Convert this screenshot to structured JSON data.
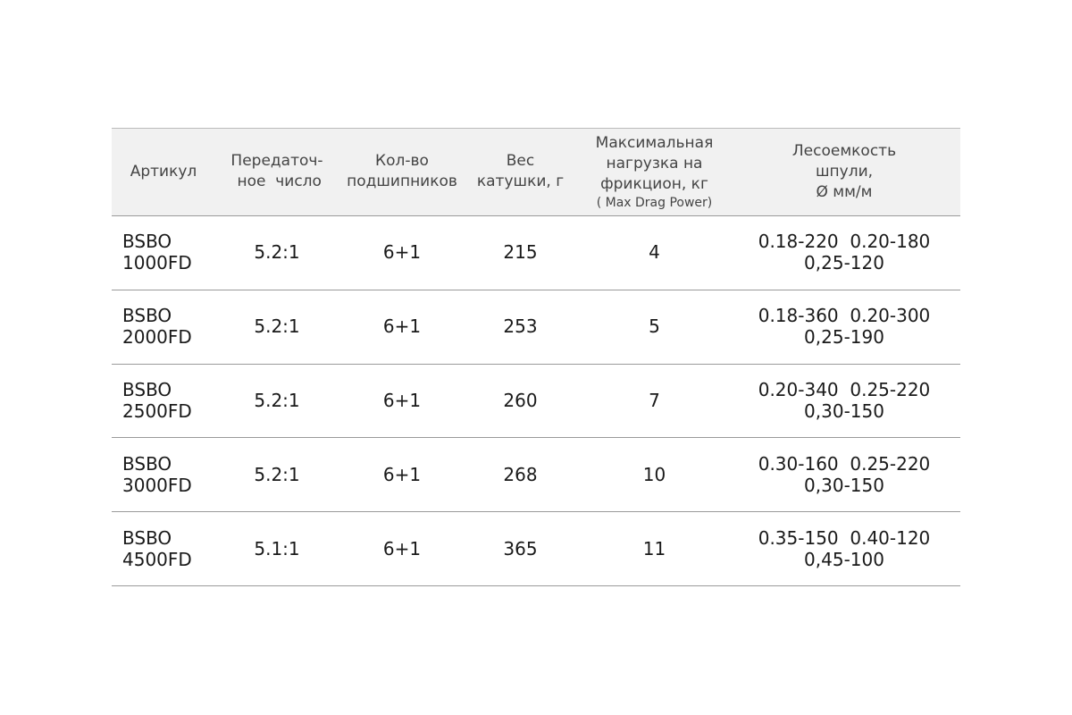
{
  "table": {
    "header": [
      {
        "lines": [
          "Артикул"
        ]
      },
      {
        "lines": [
          "Передаточ-",
          " ное  число"
        ]
      },
      {
        "lines": [
          "Кол-во",
          "подшипников"
        ]
      },
      {
        "lines": [
          "Вес",
          "катушки, г"
        ]
      },
      {
        "lines": [
          "Максимальная",
          "нагрузка на",
          "фрикцион, кг"
        ],
        "note": "( Max Drag Power)"
      },
      {
        "lines": [
          "Лесоемкость",
          "шпули,",
          "Ø мм/м"
        ]
      }
    ],
    "rows": [
      [
        [
          "BSBO",
          "1000FD"
        ],
        [
          "5.2:1"
        ],
        [
          "6+1"
        ],
        [
          "215"
        ],
        [
          "4"
        ],
        [
          "0.18-220  0.20-180",
          "0,25-120"
        ]
      ],
      [
        [
          "BSBO",
          "2000FD"
        ],
        [
          "5.2:1"
        ],
        [
          "6+1"
        ],
        [
          "253"
        ],
        [
          "5"
        ],
        [
          "0.18-360  0.20-300",
          "0,25-190"
        ]
      ],
      [
        [
          "BSBO",
          "2500FD"
        ],
        [
          "5.2:1"
        ],
        [
          "6+1"
        ],
        [
          "260"
        ],
        [
          "7"
        ],
        [
          "0.20-340  0.25-220",
          "0,30-150"
        ]
      ],
      [
        [
          "BSBO",
          "3000FD"
        ],
        [
          "5.2:1"
        ],
        [
          "6+1"
        ],
        [
          "268"
        ],
        [
          "10"
        ],
        [
          "0.30-160  0.25-220",
          "0,30-150"
        ]
      ],
      [
        [
          "BSBO",
          "4500FD"
        ],
        [
          "5.1:1"
        ],
        [
          "6+1"
        ],
        [
          "365"
        ],
        [
          "11"
        ],
        [
          "0.35-150  0.40-120",
          "0,45-100"
        ]
      ]
    ]
  }
}
